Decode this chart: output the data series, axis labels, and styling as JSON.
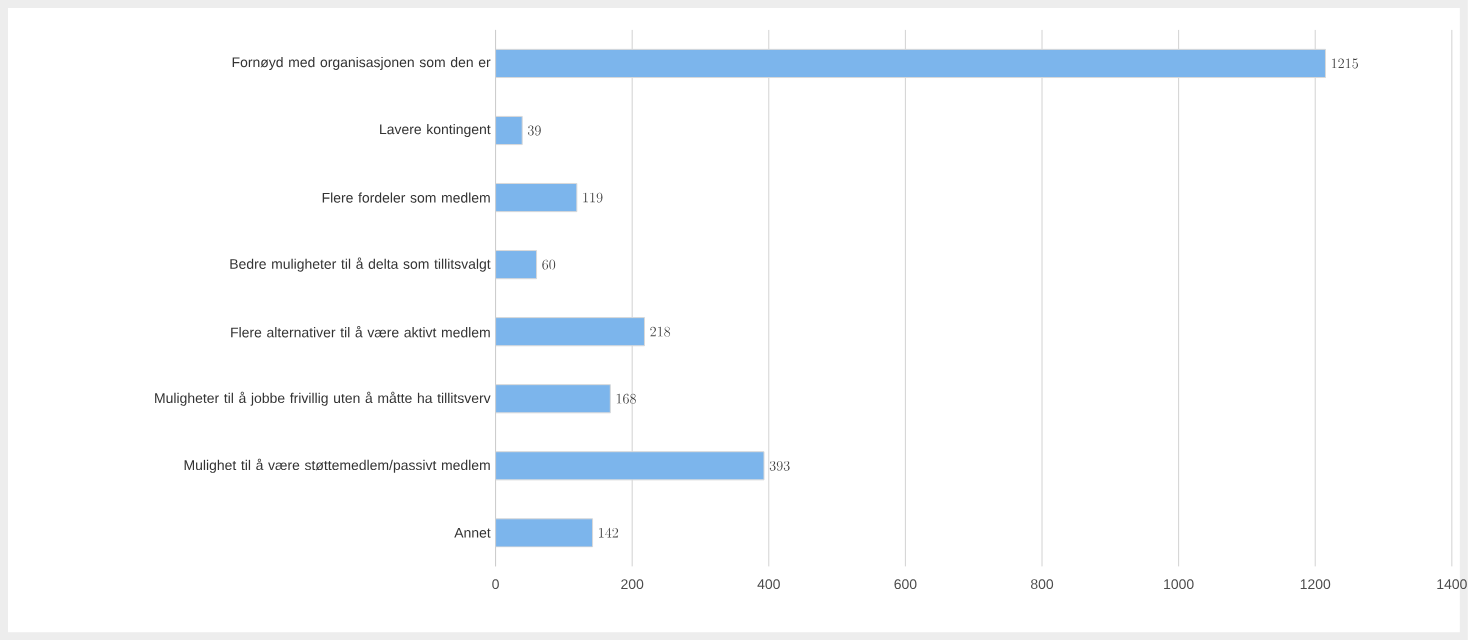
{
  "chart_data": {
    "type": "bar",
    "orientation": "horizontal",
    "categories": [
      "Fornøyd med organisasjonen som den er",
      "Lavere kontingent",
      "Flere fordeler som medlem",
      "Bedre muligheter til å delta som tillitsvalgt",
      "Flere alternativer til å være aktivt medlem",
      "Muligheter til å jobbe frivillig uten å måtte ha tillitsverv",
      "Mulighet til å være støttemedlem/passivt medlem",
      "Annet"
    ],
    "values": [
      1215,
      39,
      119,
      60,
      218,
      168,
      393,
      142
    ],
    "color": "#7cb5ec",
    "xlim": [
      0,
      1400
    ],
    "xticks": [
      0,
      200,
      400,
      600,
      800,
      1000,
      1200,
      1400
    ],
    "grid": "x",
    "data_labels": true
  }
}
